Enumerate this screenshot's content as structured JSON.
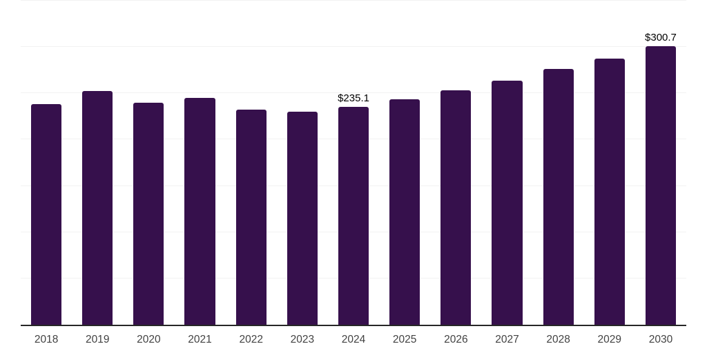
{
  "chart_data": {
    "type": "bar",
    "title": "",
    "categories": [
      "2018",
      "2019",
      "2020",
      "2021",
      "2022",
      "2023",
      "2024",
      "2025",
      "2026",
      "2027",
      "2028",
      "2029",
      "2030"
    ],
    "values": [
      238.3,
      252.7,
      239.6,
      244.9,
      232.5,
      230.2,
      235.1,
      243.4,
      253.2,
      263.6,
      276.2,
      287.2,
      300.7
    ],
    "data_labels": {
      "2024": "$235.1",
      "2030": "$300.7"
    },
    "xlabel": "",
    "ylabel": "",
    "ylim": [
      0,
      350
    ],
    "gridline_step": 50,
    "grid": true,
    "y_axis_labels_visible": false,
    "legend": "none",
    "currency_prefix": "$",
    "colors": {
      "bar": "#36104C",
      "data_label": "#000000",
      "axis_label": "#424242",
      "axis_line": "#262626",
      "gridline": "#f2f2f2",
      "background": "#ffffff"
    }
  }
}
